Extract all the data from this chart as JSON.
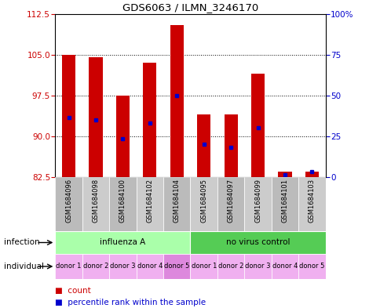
{
  "title": "GDS6063 / ILMN_3246170",
  "samples": [
    "GSM1684096",
    "GSM1684098",
    "GSM1684100",
    "GSM1684102",
    "GSM1684104",
    "GSM1684095",
    "GSM1684097",
    "GSM1684099",
    "GSM1684101",
    "GSM1684103"
  ],
  "bar_base": 82.5,
  "bar_tops": [
    105.0,
    104.5,
    97.5,
    103.5,
    110.5,
    94.0,
    94.0,
    101.5,
    83.5,
    83.5
  ],
  "percentile_values": [
    93.5,
    93.0,
    89.5,
    92.5,
    97.5,
    88.5,
    88.0,
    91.5,
    83.0,
    83.5
  ],
  "ylim_left": [
    82.5,
    112.5
  ],
  "ylim_right": [
    0,
    100
  ],
  "yticks_left": [
    82.5,
    90,
    97.5,
    105,
    112.5
  ],
  "yticks_right": [
    0,
    25,
    50,
    75,
    100
  ],
  "bar_color": "#cc0000",
  "percentile_color": "#0000cc",
  "infection_groups": [
    {
      "label": "influenza A",
      "start": 0,
      "end": 5,
      "color": "#aaffaa"
    },
    {
      "label": "no virus control",
      "start": 5,
      "end": 10,
      "color": "#55cc55"
    }
  ],
  "individuals": [
    "donor 1",
    "donor 2",
    "donor 3",
    "donor 4",
    "donor 5",
    "donor 1",
    "donor 2",
    "donor 3",
    "donor 4",
    "donor 5"
  ],
  "ind_colors": [
    "#f0b0f0",
    "#f0b0f0",
    "#f0b0f0",
    "#f0b0f0",
    "#dd88dd",
    "#f0b0f0",
    "#f0b0f0",
    "#f0b0f0",
    "#f0b0f0",
    "#f0b0f0"
  ],
  "infection_label": "infection",
  "individual_label": "individual",
  "legend_count_label": "count",
  "legend_percentile_label": "percentile rank within the sample",
  "bar_color_hex": "#cc0000",
  "percentile_color_hex": "#0000cc",
  "right_axis_color": "#0000cc",
  "left_axis_color": "#cc0000"
}
